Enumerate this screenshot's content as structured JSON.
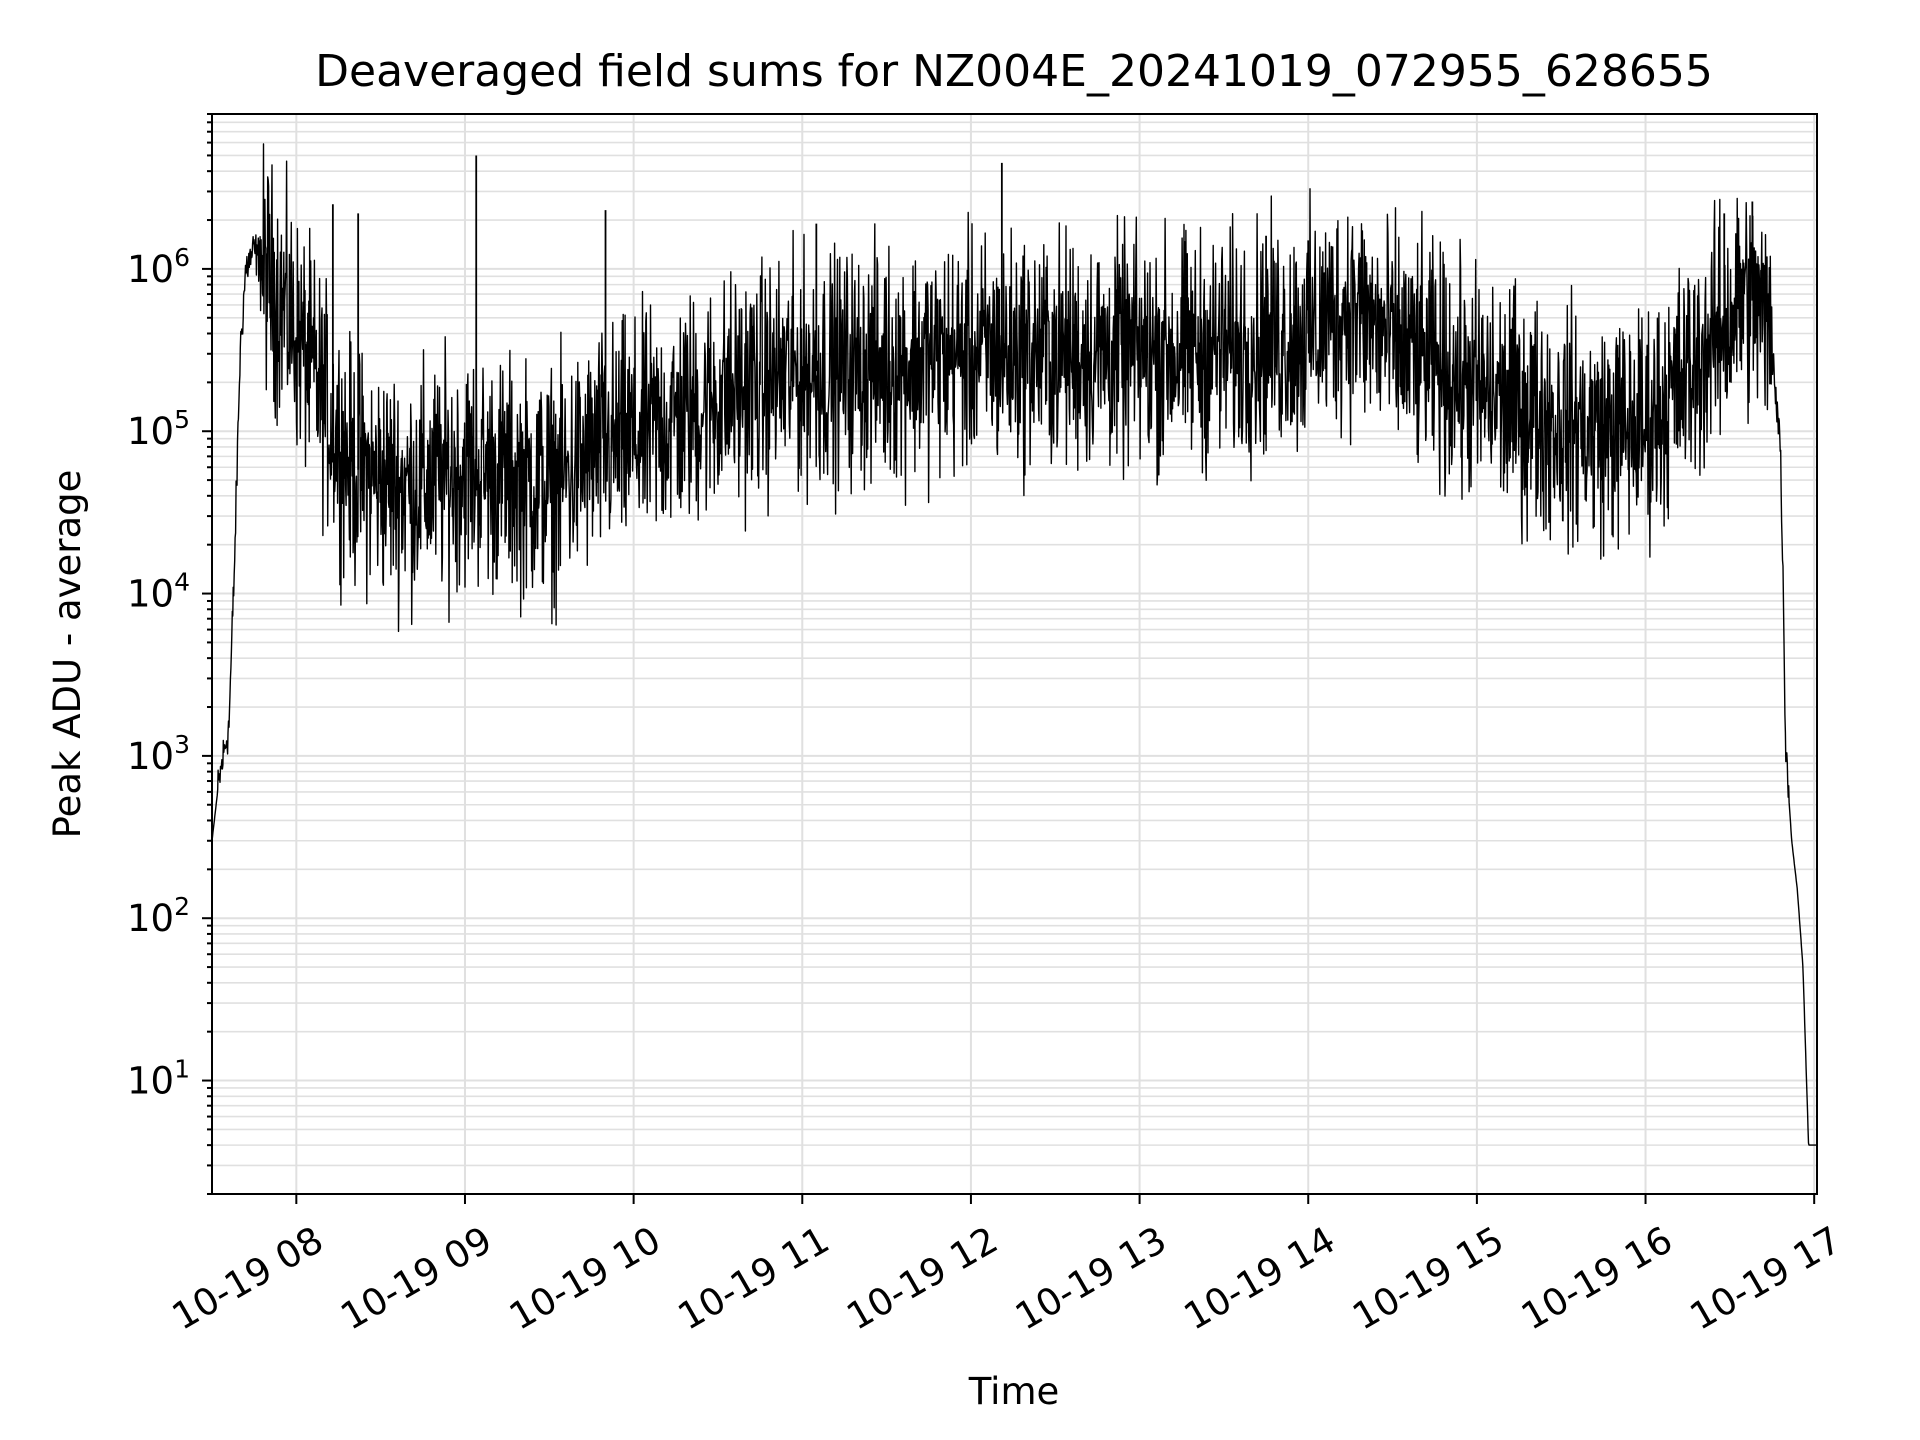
{
  "chart_data": {
    "type": "line",
    "title": "Deaveraged field sums for NZ004E_20241019_072955_628655",
    "xlabel": "Time",
    "ylabel": "Peak ADU - average",
    "x_range": [
      "10-19 07:30",
      "10-19 17:01"
    ],
    "y_scale": "log",
    "ylim": [
      2,
      9000000
    ],
    "grid": true,
    "line_color": "#000000",
    "grid_color": "#e0e0e0",
    "x_ticks": [
      {
        "label": "10-19 08",
        "value": "10-19 08:00"
      },
      {
        "label": "10-19 09",
        "value": "10-19 09:00"
      },
      {
        "label": "10-19 10",
        "value": "10-19 10:00"
      },
      {
        "label": "10-19 11",
        "value": "10-19 11:00"
      },
      {
        "label": "10-19 12",
        "value": "10-19 12:00"
      },
      {
        "label": "10-19 13",
        "value": "10-19 13:00"
      },
      {
        "label": "10-19 14",
        "value": "10-19 14:00"
      },
      {
        "label": "10-19 15",
        "value": "10-19 15:00"
      },
      {
        "label": "10-19 16",
        "value": "10-19 16:00"
      },
      {
        "label": "10-19 17",
        "value": "10-19 17:00"
      }
    ],
    "y_ticks": [
      {
        "base": "10",
        "exp": "1",
        "value": 10
      },
      {
        "base": "10",
        "exp": "2",
        "value": 100
      },
      {
        "base": "10",
        "exp": "3",
        "value": 1000
      },
      {
        "base": "10",
        "exp": "4",
        "value": 10000
      },
      {
        "base": "10",
        "exp": "5",
        "value": 100000
      },
      {
        "base": "10",
        "exp": "6",
        "value": 1000000
      }
    ],
    "series": [
      {
        "x": [
          "10-19 07:30",
          "10-19 07:32",
          "10-19 07:34",
          "10-19 07:36",
          "10-19 07:38",
          "10-19 07:40",
          "10-19 07:42",
          "10-19 07:45",
          "10-19 07:50",
          "10-19 07:55",
          "10-19 08:00",
          "10-19 08:05",
          "10-19 08:10",
          "10-19 08:15",
          "10-19 08:20",
          "10-19 08:30",
          "10-19 08:40",
          "10-19 08:50",
          "10-19 09:00",
          "10-19 09:10",
          "10-19 09:20",
          "10-19 09:30",
          "10-19 09:40",
          "10-19 09:50",
          "10-19 10:00",
          "10-19 10:15",
          "10-19 10:30",
          "10-19 10:45",
          "10-19 11:00",
          "10-19 11:30",
          "10-19 12:00",
          "10-19 12:30",
          "10-19 13:00",
          "10-19 13:30",
          "10-19 14:00",
          "10-19 14:15",
          "10-19 14:30",
          "10-19 15:00",
          "10-19 15:30",
          "10-19 15:45",
          "10-19 16:00",
          "10-19 16:15",
          "10-19 16:30",
          "10-19 16:35",
          "10-19 16:40",
          "10-19 16:45",
          "10-19 16:48",
          "10-19 16:50",
          "10-19 16:52",
          "10-19 16:54",
          "10-19 16:56",
          "10-19 16:58",
          "10-19 17:00",
          "10-19 17:01"
        ],
        "values": [
          300,
          600,
          1000,
          1500,
          15000,
          300000,
          1000000,
          1300000,
          900000,
          600000,
          400000,
          250000,
          150000,
          90000,
          60000,
          50000,
          45000,
          50000,
          60000,
          55000,
          50000,
          45000,
          60000,
          80000,
          90000,
          120000,
          160000,
          200000,
          230000,
          260000,
          300000,
          310000,
          300000,
          320000,
          400000,
          600000,
          350000,
          180000,
          110000,
          100000,
          110000,
          220000,
          500000,
          700000,
          600000,
          350000,
          80000,
          1000,
          300,
          150,
          50,
          4,
          4,
          4
        ]
      }
    ],
    "spikes": [
      {
        "x": "10-19 07:47",
        "value": 1500000
      },
      {
        "x": "10-19 08:13",
        "value": 2500000
      },
      {
        "x": "10-19 08:22",
        "value": 2200000
      },
      {
        "x": "10-19 09:04",
        "value": 5000000
      },
      {
        "x": "10-19 09:50",
        "value": 2300000
      },
      {
        "x": "10-19 11:05",
        "value": 1900000
      },
      {
        "x": "10-19 12:11",
        "value": 4500000
      },
      {
        "x": "10-19 13:45",
        "value": 1600000
      },
      {
        "x": "10-19 14:00",
        "value": 1500000
      },
      {
        "x": "10-19 16:28",
        "value": 2200000
      },
      {
        "x": "10-19 16:38",
        "value": 2600000
      }
    ]
  }
}
